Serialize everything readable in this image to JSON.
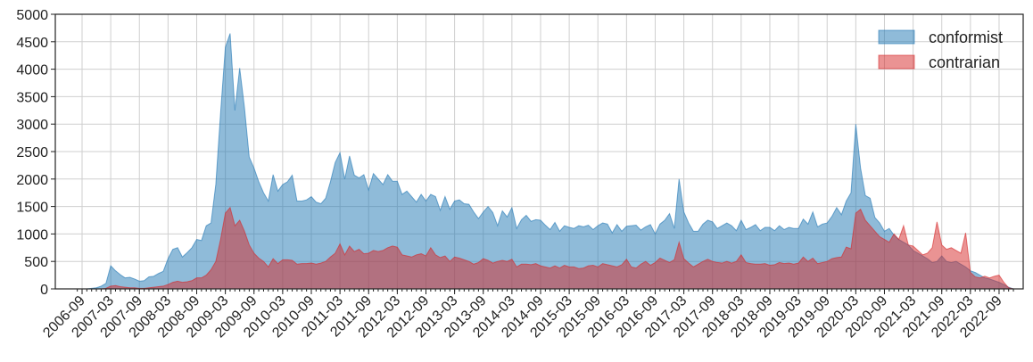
{
  "chart_data": {
    "type": "area",
    "categories": [
      null,
      "2006-09",
      null,
      null,
      null,
      null,
      null,
      "2007-03",
      null,
      null,
      null,
      null,
      null,
      "2007-09",
      null,
      null,
      null,
      null,
      null,
      "2008-03",
      null,
      null,
      null,
      null,
      null,
      "2008-09",
      null,
      null,
      null,
      null,
      null,
      "2009-03",
      null,
      null,
      null,
      null,
      null,
      "2009-09",
      null,
      null,
      null,
      null,
      null,
      "2010-03",
      null,
      null,
      null,
      null,
      null,
      "2010-09",
      null,
      null,
      null,
      null,
      null,
      "2011-03",
      null,
      null,
      null,
      null,
      null,
      "2011-09",
      null,
      null,
      null,
      null,
      null,
      "2012-03",
      null,
      null,
      null,
      null,
      null,
      "2012-09",
      null,
      null,
      null,
      null,
      null,
      "2013-03",
      null,
      null,
      null,
      null,
      null,
      "2013-09",
      null,
      null,
      null,
      null,
      null,
      "2014-03",
      null,
      null,
      null,
      null,
      null,
      "2014-09",
      null,
      null,
      null,
      null,
      null,
      "2015-03",
      null,
      null,
      null,
      null,
      null,
      "2015-09",
      null,
      null,
      null,
      null,
      null,
      "2016-03",
      null,
      null,
      null,
      null,
      null,
      "2016-09",
      null,
      null,
      null,
      null,
      null,
      "2017-03",
      null,
      null,
      null,
      null,
      null,
      "2017-09",
      null,
      null,
      null,
      null,
      null,
      "2018-03",
      null,
      null,
      null,
      null,
      null,
      "2018-09",
      null,
      null,
      null,
      null,
      null,
      "2019-03",
      null,
      null,
      null,
      null,
      null,
      "2019-09",
      null,
      null,
      null,
      null,
      null,
      "2020-03",
      null,
      null,
      null,
      null,
      null,
      "2020-09",
      null,
      null,
      null,
      null,
      null,
      "2021-03",
      null,
      null,
      null,
      null,
      null,
      "2021-09",
      null,
      null,
      null,
      null,
      null,
      "2022-03",
      null,
      null,
      null,
      null,
      null,
      "2022-09",
      null,
      null,
      null
    ],
    "series": [
      {
        "name": "conformist",
        "color": "#1f77b4",
        "values": [
          0,
          0,
          0,
          10,
          20,
          50,
          100,
          420,
          330,
          260,
          200,
          210,
          180,
          140,
          150,
          220,
          230,
          280,
          320,
          550,
          720,
          750,
          580,
          660,
          750,
          900,
          880,
          1150,
          1200,
          1900,
          3200,
          4400,
          4650,
          3250,
          4020,
          3300,
          2400,
          2200,
          1950,
          1750,
          1600,
          2080,
          1780,
          1900,
          1950,
          2070,
          1600,
          1600,
          1620,
          1680,
          1580,
          1550,
          1650,
          1950,
          2300,
          2480,
          2000,
          2420,
          2070,
          2020,
          2080,
          1800,
          2100,
          2000,
          1900,
          2080,
          1960,
          1960,
          1720,
          1780,
          1680,
          1580,
          1720,
          1600,
          1720,
          1680,
          1430,
          1680,
          1450,
          1600,
          1620,
          1550,
          1540,
          1400,
          1280,
          1400,
          1500,
          1390,
          1150,
          1420,
          1310,
          1480,
          1100,
          1260,
          1340,
          1230,
          1260,
          1250,
          1160,
          1080,
          1210,
          1050,
          1150,
          1120,
          1100,
          1150,
          1130,
          1160,
          1080,
          1150,
          1200,
          1180,
          1020,
          1170,
          1050,
          1140,
          1150,
          1160,
          1070,
          1130,
          1170,
          1000,
          1180,
          1250,
          1370,
          1100,
          2000,
          1400,
          1200,
          1050,
          1050,
          1180,
          1250,
          1220,
          1100,
          1150,
          1200,
          1150,
          1060,
          1250,
          1080,
          1120,
          1170,
          1060,
          1120,
          1120,
          1060,
          1150,
          1080,
          1120,
          1100,
          1100,
          1270,
          1180,
          1400,
          1130,
          1180,
          1200,
          1320,
          1480,
          1350,
          1600,
          1750,
          3000,
          2200,
          1700,
          1650,
          1300,
          1200,
          1050,
          1100,
          980,
          900,
          850,
          800,
          700,
          650,
          600,
          550,
          480,
          500,
          600,
          500,
          480,
          500,
          450,
          400,
          330,
          300,
          250,
          200,
          180,
          150,
          120,
          80,
          30,
          0
        ]
      },
      {
        "name": "contrarian",
        "color": "#d62728",
        "values": [
          0,
          0,
          0,
          0,
          0,
          0,
          10,
          50,
          60,
          40,
          30,
          20,
          20,
          10,
          10,
          20,
          30,
          40,
          50,
          80,
          120,
          140,
          120,
          130,
          150,
          200,
          200,
          250,
          350,
          500,
          900,
          1380,
          1480,
          1150,
          1250,
          1050,
          800,
          650,
          560,
          500,
          400,
          550,
          460,
          530,
          530,
          520,
          450,
          460,
          460,
          470,
          450,
          470,
          500,
          580,
          650,
          820,
          620,
          780,
          680,
          720,
          640,
          650,
          700,
          680,
          700,
          750,
          780,
          760,
          620,
          600,
          580,
          620,
          640,
          600,
          750,
          620,
          570,
          600,
          500,
          580,
          560,
          530,
          500,
          450,
          480,
          550,
          520,
          470,
          500,
          520,
          500,
          540,
          400,
          450,
          450,
          440,
          460,
          420,
          400,
          380,
          420,
          380,
          430,
          400,
          400,
          370,
          380,
          420,
          430,
          400,
          460,
          440,
          420,
          400,
          440,
          540,
          400,
          380,
          450,
          500,
          430,
          480,
          560,
          520,
          480,
          530,
          850,
          550,
          470,
          400,
          450,
          500,
          540,
          500,
          480,
          470,
          500,
          470,
          500,
          620,
          480,
          460,
          450,
          450,
          460,
          430,
          440,
          480,
          460,
          470,
          450,
          470,
          580,
          500,
          560,
          460,
          480,
          500,
          550,
          570,
          580,
          760,
          730,
          1380,
          1450,
          1250,
          1150,
          1050,
          950,
          900,
          850,
          1000,
          900,
          1150,
          800,
          780,
          700,
          620,
          650,
          750,
          1220,
          800,
          720,
          750,
          700,
          650,
          1020,
          300,
          220,
          200,
          230,
          200,
          230,
          250,
          120,
          20,
          0
        ]
      }
    ],
    "ylim": [
      0,
      5000
    ],
    "yticks": [
      0,
      500,
      1000,
      1500,
      2000,
      2500,
      3000,
      3500,
      4000,
      4500,
      5000
    ],
    "grid": true,
    "legend": "upper right"
  }
}
